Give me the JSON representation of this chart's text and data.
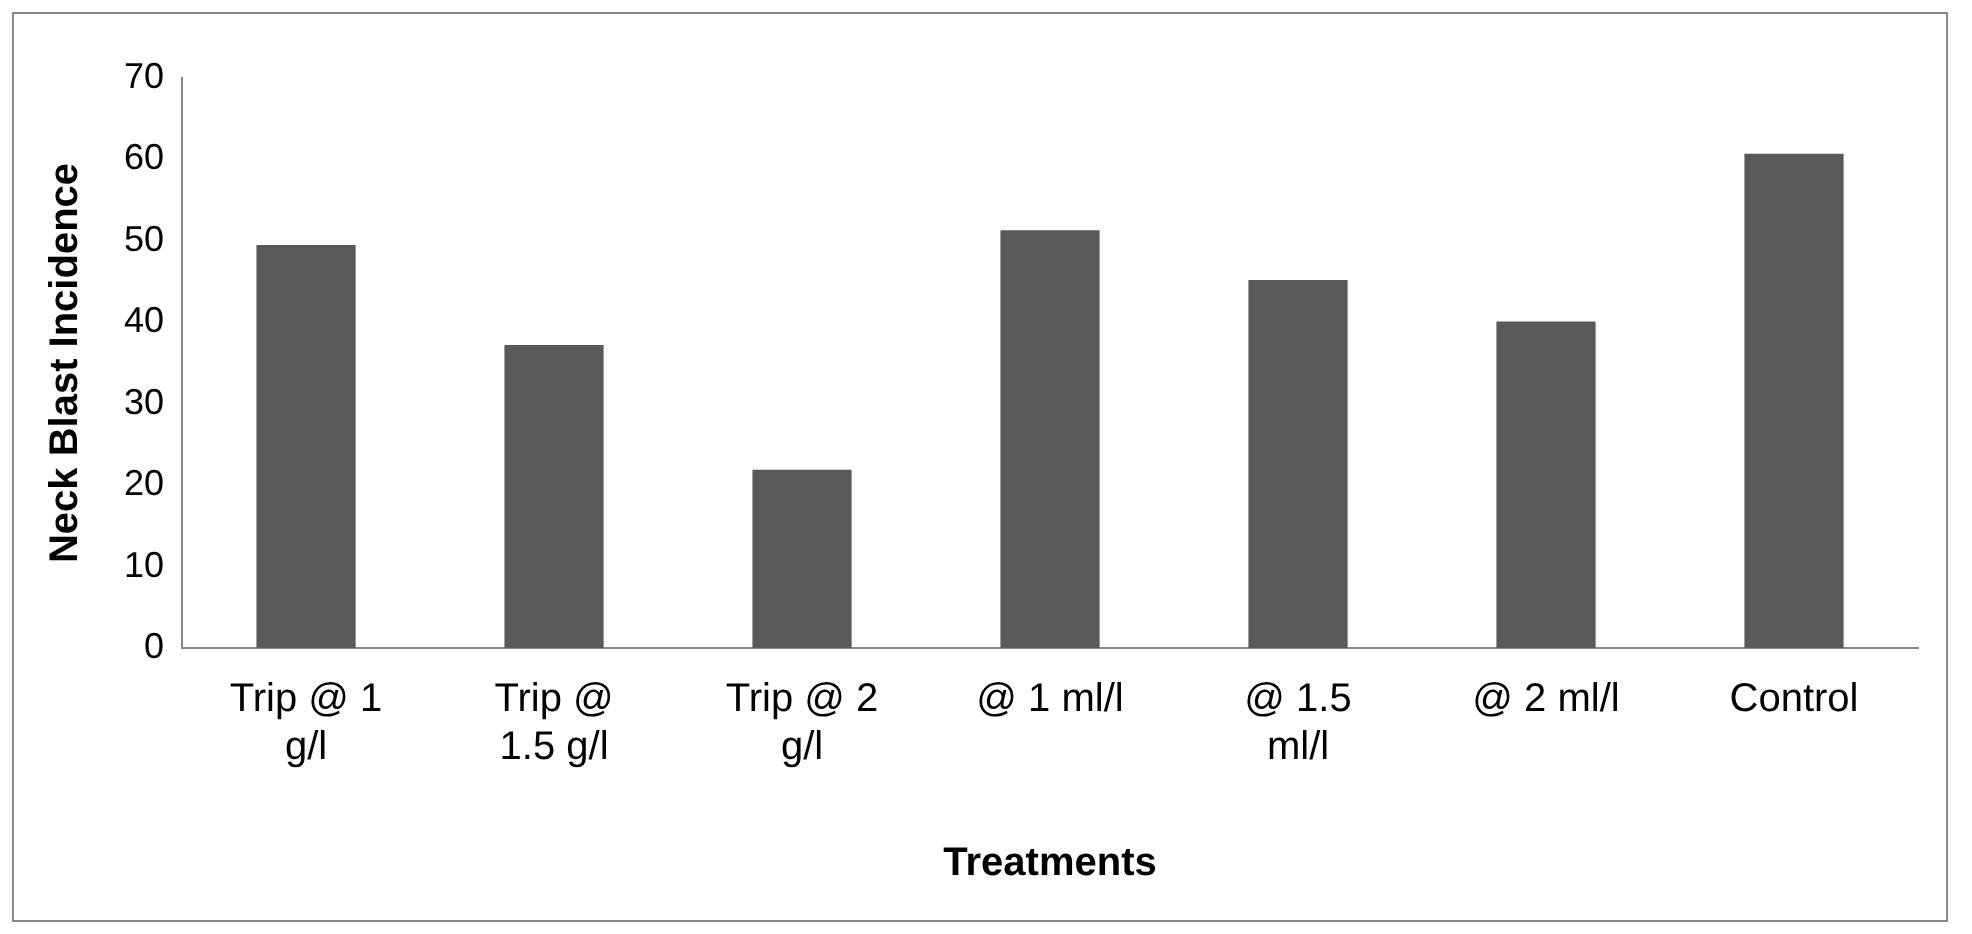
{
  "chart_data": {
    "type": "bar",
    "xlabel": "Treatments",
    "ylabel": "Neck Blast Incidence",
    "categories": [
      "Trip @ 1 g/l",
      "Trip @ 1.5 g/l",
      "Trip @ 2 g/l",
      "@ 1 ml/l",
      "@ 1.5 ml/l",
      "@ 2 ml/l",
      "Control"
    ],
    "values": [
      49.5,
      37.2,
      21.9,
      51.3,
      45.2,
      40.1,
      60.7
    ],
    "color": "#595959",
    "ylim": [
      0,
      70
    ],
    "yticks": [
      0,
      10,
      20,
      30,
      40,
      50,
      60,
      70
    ],
    "grid": false,
    "legend": false
  }
}
